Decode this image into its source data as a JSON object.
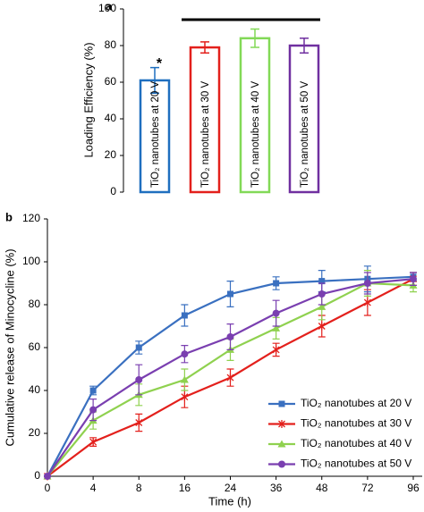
{
  "chart_data": [
    {
      "type": "bar",
      "panel_label": "a",
      "ylabel": "Loading  Efficiency (%)",
      "categories": [
        "TiO₂ nanotubes at 20 V",
        "TiO₂ nanotubes at 30 V",
        "TiO₂ nanotubes at 40 V",
        "TiO₂ nanotubes at 50 V"
      ],
      "values": [
        61,
        79,
        84,
        80
      ],
      "errors": [
        7,
        3,
        5,
        4
      ],
      "colors": [
        "#1f6fbf",
        "#e3201c",
        "#82d957",
        "#7030a0"
      ],
      "annotation": "*",
      "ylim": [
        0,
        100
      ],
      "yticks": [
        0,
        20,
        40,
        60,
        80,
        100
      ]
    },
    {
      "type": "line",
      "panel_label": "b",
      "xlabel": "Time (h)",
      "ylabel": "Cumulative release of Minocycline (%)",
      "categories": [
        "0",
        "4",
        "8",
        "16",
        "24",
        "36",
        "48",
        "72",
        "96"
      ],
      "ylim": [
        0,
        120
      ],
      "yticks": [
        0,
        20,
        40,
        60,
        80,
        100,
        120
      ],
      "legend": "lower right",
      "series": [
        {
          "name": "TiO₂ nanotubes at 20 V",
          "color": "#3a70c0",
          "marker": "square",
          "values": [
            0,
            40,
            60,
            75,
            85,
            90,
            91,
            92,
            93
          ],
          "errors": [
            0,
            2,
            3,
            5,
            6,
            3,
            5,
            6,
            2
          ]
        },
        {
          "name": "TiO₂ nanotubes at 30 V",
          "color": "#e3201c",
          "marker": "star",
          "values": [
            0,
            16,
            25,
            37,
            46,
            59,
            70,
            81,
            92
          ],
          "errors": [
            0,
            2,
            4,
            5,
            4,
            3,
            5,
            6,
            3
          ]
        },
        {
          "name": "TiO₂ nanotubes at 40 V",
          "color": "#8fd14f",
          "marker": "triangle",
          "values": [
            0,
            26,
            38,
            45,
            59,
            69,
            79,
            90,
            89
          ],
          "errors": [
            0,
            4,
            5,
            5,
            5,
            5,
            6,
            6,
            3
          ]
        },
        {
          "name": "TiO₂ nanotubes at 50 V",
          "color": "#7a3fb0",
          "marker": "circle",
          "values": [
            0,
            31,
            45,
            57,
            65,
            76,
            85,
            90,
            92
          ],
          "errors": [
            0,
            5,
            7,
            4,
            6,
            6,
            5,
            5,
            3
          ]
        }
      ]
    }
  ]
}
